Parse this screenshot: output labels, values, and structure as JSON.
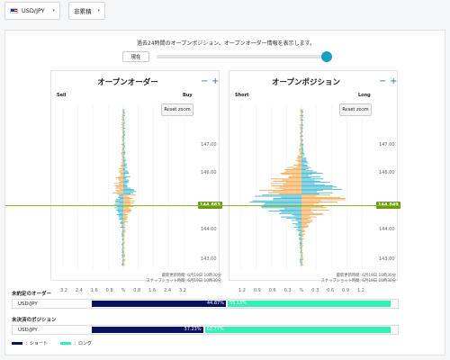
{
  "pair_select": {
    "value": "USD/JPY"
  },
  "mode_select": {
    "value": "非累積"
  },
  "description": "過去24時間のオープンポジション、オープンオーダー情報を表示します。",
  "time_slider": {
    "button": "現在"
  },
  "orders_chart": {
    "title": "オープンオーダー",
    "left_label": "Sell",
    "right_label": "Buy",
    "reset": "Reset zoom",
    "y_ticks": [
      "147.00",
      "146.00",
      "145.00",
      "144.00",
      "143.00"
    ],
    "current_price": "144.863",
    "x_ticks": [
      "3.2",
      "2.4",
      "1.6",
      "0.8",
      "%",
      "0.8",
      "1.6",
      "2.4",
      "3.2"
    ],
    "updated": "最新更新時間: 6月19日 10時30分",
    "snapshot": "スナップショット時間: 6月19日 10時30分"
  },
  "positions_chart": {
    "title": "オープンポジション",
    "left_label": "Short",
    "right_label": "Long",
    "reset": "Reset zoom",
    "y_ticks": [
      "147.00",
      "146.00",
      "145.00",
      "144.00",
      "143.00"
    ],
    "current_price": "144.849",
    "x_ticks": [
      "1.2",
      "0.9",
      "0.6",
      "0.3",
      "%",
      "0.3",
      "0.6",
      "0.9",
      "1.2"
    ],
    "updated": "最新更新時間: 6月19日 10時30分",
    "snapshot": "スナップショット時間: 6月19日 10時30分"
  },
  "unfilled_orders": {
    "title": "未約定のオーダー",
    "pair": "USD/JPY",
    "short_pct": "44.87%",
    "long_pct": "55.13%",
    "short_fraction": 0.4487
  },
  "open_positions": {
    "title": "未決済のポジション",
    "pair": "USD/JPY",
    "short_pct": "37.23%",
    "long_pct": "62.77%",
    "short_fraction": 0.3723
  },
  "legend": {
    "short": "：ショート",
    "long": "：ロング",
    "short_color": "#0a1163",
    "long_color": "#33f0b5"
  },
  "colors": {
    "bar_orange": "#f5a54a",
    "bar_blue": "#3bb6cf",
    "price_line": "#8ab92d",
    "price_tag": "#6c9b0d"
  }
}
